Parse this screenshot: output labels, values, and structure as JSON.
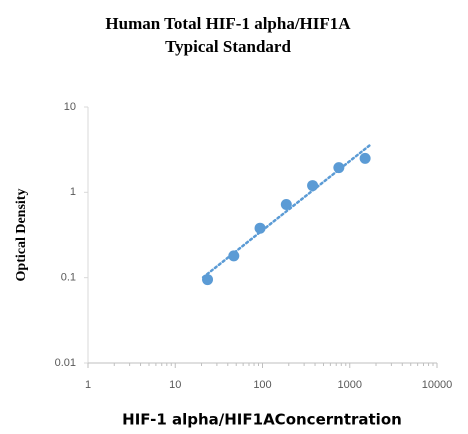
{
  "chart_data": {
    "type": "scatter",
    "title": [
      "Human Total HIF-1 alpha/HIF1A",
      "Typical Standard"
    ],
    "x_label": "HIF-1 alpha/HIF1AConcerntration",
    "y_label": "Optical Density",
    "series": [
      {
        "color": "#5b9bd5",
        "x": [
          23.44,
          46.88,
          93.75,
          187.5,
          375,
          750,
          1500
        ],
        "values": [
          0.095,
          0.18,
          0.38,
          0.72,
          1.2,
          1.95,
          2.5
        ]
      }
    ],
    "x_log": true,
    "y_log": true,
    "xlim": [
      1,
      10000
    ],
    "xticks": [
      1,
      10,
      100,
      1000,
      10000
    ],
    "ylim": [
      0.01,
      10
    ],
    "yticks": [
      0.01,
      0.1,
      1,
      10
    ],
    "trendline": "power",
    "grid": false
  }
}
